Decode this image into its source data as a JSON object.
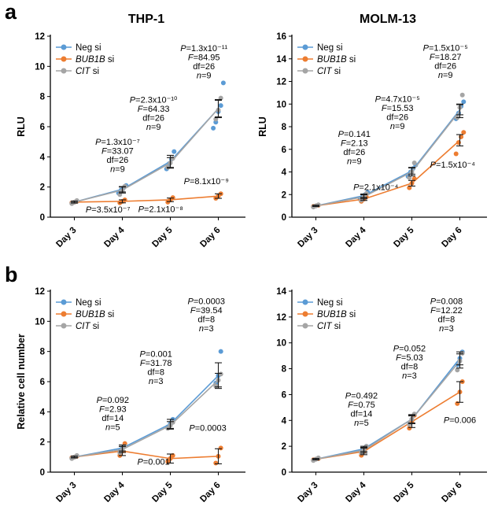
{
  "figure": {
    "panel_labels": [
      "a",
      "b"
    ]
  },
  "chart_data": [
    {
      "id": "panel-a-left",
      "type": "line",
      "title": "THP-1",
      "ylabel": "RLU",
      "ylim": [
        0,
        12
      ],
      "ytick_step": 2,
      "grid": false,
      "legend_position": "top-left",
      "categories": [
        "Day 3",
        "Day 4",
        "Day 5",
        "Day 6"
      ],
      "series": [
        {
          "label": "Neg si",
          "label_gene": "Neg",
          "gene_italic": false,
          "color": "#5B9BD5",
          "means": [
            1.0,
            1.85,
            3.7,
            7.2
          ],
          "err": [
            0.06,
            0.18,
            0.4,
            0.6
          ],
          "points": [
            [
              0.95,
              1.0,
              1.05
            ],
            [
              1.6,
              1.8,
              1.95,
              2.1
            ],
            [
              3.2,
              3.55,
              3.85,
              4.35
            ],
            [
              5.9,
              6.3,
              7.0,
              7.4,
              8.9
            ]
          ]
        },
        {
          "label": "BUB1B si",
          "label_gene": "BUB1B",
          "gene_italic": true,
          "color": "#ED7D31",
          "means": [
            1.0,
            1.05,
            1.15,
            1.4
          ],
          "err": [
            0.05,
            0.1,
            0.12,
            0.15
          ],
          "points": [
            [
              0.95,
              1.0,
              1.05
            ],
            [
              0.95,
              1.05,
              1.15
            ],
            [
              1.0,
              1.15,
              1.3
            ],
            [
              1.25,
              1.4,
              1.55
            ]
          ]
        },
        {
          "label": "CIT si",
          "label_gene": "CIT",
          "gene_italic": true,
          "color": "#A5A5A5",
          "means": [
            1.0,
            1.8,
            3.6,
            7.2
          ],
          "err": [
            0.06,
            0.2,
            0.35,
            0.55
          ],
          "points": [
            [
              0.9,
              1.0,
              1.1
            ],
            [
              1.5,
              1.75,
              2.05
            ],
            [
              3.3,
              3.6,
              3.9
            ],
            [
              6.5,
              7.1,
              7.9
            ]
          ]
        }
      ],
      "annotations": [
        {
          "x": 2.7,
          "y": 11.0,
          "lines": [
            "P=1.3x10⁻¹¹",
            "F=84.95",
            "df=26",
            "n=9"
          ]
        },
        {
          "x": 1.65,
          "y": 7.6,
          "lines": [
            "P=2.3x10⁻¹⁰",
            "F=64.33",
            "df=26",
            "n=9"
          ]
        },
        {
          "x": 0.9,
          "y": 4.8,
          "lines": [
            "P=1.3x10⁻⁷",
            "F=33.07",
            "df=26",
            "n=9"
          ]
        },
        {
          "x": 0.7,
          "y": 0.32,
          "lines": [
            "P=3.5x10⁻⁷"
          ]
        },
        {
          "x": 1.8,
          "y": 0.34,
          "lines": [
            "P=2.1x10⁻⁸"
          ]
        },
        {
          "x": 2.75,
          "y": 2.2,
          "lines": [
            "P=8.1x10⁻⁹"
          ]
        }
      ]
    },
    {
      "id": "panel-a-right",
      "type": "line",
      "title": "MOLM-13",
      "ylabel": "RLU",
      "ylim": [
        0,
        16
      ],
      "ytick_step": 2,
      "grid": false,
      "legend_position": "top-left",
      "categories": [
        "Day 3",
        "Day 4",
        "Day 5",
        "Day 6"
      ],
      "series": [
        {
          "label": "Neg si",
          "label_gene": "Neg",
          "gene_italic": false,
          "color": "#5B9BD5",
          "means": [
            1.0,
            1.9,
            4.1,
            9.5
          ],
          "err": [
            0.05,
            0.15,
            0.3,
            0.45
          ],
          "points": [
            [
              0.95,
              1.0,
              1.05
            ],
            [
              1.6,
              1.8,
              2.0,
              2.2
            ],
            [
              3.6,
              4.0,
              4.3,
              4.6
            ],
            [
              8.7,
              9.2,
              9.8,
              10.2
            ]
          ]
        },
        {
          "label": "BUB1B si",
          "label_gene": "BUB1B",
          "gene_italic": true,
          "color": "#ED7D31",
          "means": [
            1.0,
            1.6,
            3.0,
            6.8
          ],
          "err": [
            0.05,
            0.12,
            0.25,
            0.5
          ],
          "points": [
            [
              0.95,
              1.0,
              1.05
            ],
            [
              1.4,
              1.6,
              1.8
            ],
            [
              2.6,
              3.0,
              3.4
            ],
            [
              5.6,
              6.6,
              7.1,
              7.5
            ]
          ]
        },
        {
          "label": "CIT si",
          "label_gene": "CIT",
          "gene_italic": true,
          "color": "#A5A5A5",
          "means": [
            1.0,
            1.8,
            4.0,
            9.4
          ],
          "err": [
            0.05,
            0.18,
            0.35,
            0.6
          ],
          "points": [
            [
              0.9,
              1.0,
              1.1
            ],
            [
              1.5,
              1.8,
              2.1
            ],
            [
              3.5,
              4.0,
              4.8
            ],
            [
              8.8,
              9.7,
              10.8
            ]
          ]
        }
      ],
      "annotations": [
        {
          "x": 2.7,
          "y": 14.7,
          "lines": [
            "P=1.5x10⁻⁵",
            "F=18.27",
            "df=26",
            "n=9"
          ]
        },
        {
          "x": 1.7,
          "y": 10.2,
          "lines": [
            "P=4.7x10⁻⁵",
            "F=15.53",
            "df=26",
            "n=9"
          ]
        },
        {
          "x": 0.8,
          "y": 7.1,
          "lines": [
            "P=0.141",
            "F=2.13",
            "df=26",
            "n=9"
          ]
        },
        {
          "x": 1.25,
          "y": 2.4,
          "lines": [
            "P=2.1x10⁻⁴"
          ]
        },
        {
          "x": 2.85,
          "y": 4.4,
          "lines": [
            "P=1.5x10⁻⁴"
          ]
        }
      ]
    },
    {
      "id": "panel-b-left",
      "type": "line",
      "title": "",
      "ylabel": "Relative cell number",
      "ylim": [
        0,
        12
      ],
      "ytick_step": 2,
      "grid": false,
      "legend_position": "top-left",
      "categories": [
        "Day 3",
        "Day 4",
        "Day 5",
        "Day 6"
      ],
      "series": [
        {
          "label": "Neg si",
          "label_gene": "Neg",
          "gene_italic": false,
          "color": "#5B9BD5",
          "means": [
            1.0,
            1.6,
            3.2,
            6.4
          ],
          "err": [
            0.05,
            0.2,
            0.3,
            0.85
          ],
          "points": [
            [
              0.95,
              1.0,
              1.05
            ],
            [
              1.4,
              1.6,
              1.8
            ],
            [
              3.0,
              3.2,
              3.5
            ],
            [
              5.9,
              6.4,
              8.0
            ]
          ]
        },
        {
          "label": "BUB1B si",
          "label_gene": "BUB1B",
          "gene_italic": true,
          "color": "#ED7D31",
          "means": [
            1.0,
            1.4,
            0.9,
            1.05
          ],
          "err": [
            0.05,
            0.3,
            0.3,
            0.5
          ],
          "points": [
            [
              0.95,
              1.0,
              1.05
            ],
            [
              1.1,
              1.4,
              1.9
            ],
            [
              0.7,
              0.9,
              1.1
            ],
            [
              0.6,
              1.05,
              1.6
            ]
          ]
        },
        {
          "label": "CIT si",
          "label_gene": "CIT",
          "gene_italic": true,
          "color": "#A5A5A5",
          "means": [
            1.0,
            1.5,
            3.1,
            6.1
          ],
          "err": [
            0.05,
            0.2,
            0.25,
            0.45
          ],
          "points": [
            [
              0.9,
              1.0,
              1.1
            ],
            [
              1.3,
              1.5,
              1.7
            ],
            [
              2.9,
              3.1,
              3.3
            ],
            [
              5.7,
              6.1,
              6.5
            ]
          ]
        }
      ],
      "annotations": [
        {
          "x": 2.75,
          "y": 11.15,
          "lines": [
            "P=0.0003",
            "F=39.54",
            "df=8",
            "n=3"
          ]
        },
        {
          "x": 1.7,
          "y": 7.65,
          "lines": [
            "P=0.001",
            "F=31.78",
            "df=8",
            "n=3"
          ]
        },
        {
          "x": 0.8,
          "y": 4.6,
          "lines": [
            "P=0.092",
            "F=2.93",
            "df=14",
            "n=5"
          ]
        },
        {
          "x": 1.65,
          "y": 0.5,
          "lines": [
            "P=0.001"
          ]
        },
        {
          "x": 2.78,
          "y": 2.75,
          "lines": [
            "P=0.0003"
          ]
        }
      ]
    },
    {
      "id": "panel-b-right",
      "type": "line",
      "title": "",
      "ylabel": "",
      "ylim": [
        0,
        14
      ],
      "ytick_step": 2,
      "grid": false,
      "legend_position": "top-left",
      "categories": [
        "Day 3",
        "Day 4",
        "Day 5",
        "Day 6"
      ],
      "series": [
        {
          "label": "Neg si",
          "label_gene": "Neg",
          "gene_italic": false,
          "color": "#5B9BD5",
          "means": [
            1.0,
            1.8,
            4.1,
            8.8
          ],
          "err": [
            0.05,
            0.2,
            0.3,
            0.5
          ],
          "points": [
            [
              0.95,
              1.0,
              1.05
            ],
            [
              1.6,
              1.8,
              2.0
            ],
            [
              3.8,
              4.1,
              4.4
            ],
            [
              8.3,
              8.8,
              9.3
            ]
          ]
        },
        {
          "label": "BUB1B si",
          "label_gene": "BUB1B",
          "gene_italic": true,
          "color": "#ED7D31",
          "means": [
            1.0,
            1.6,
            3.9,
            6.2
          ],
          "err": [
            0.05,
            0.25,
            0.45,
            0.8
          ],
          "points": [
            [
              0.95,
              1.0,
              1.05
            ],
            [
              1.3,
              1.6,
              1.9
            ],
            [
              3.4,
              3.9,
              4.4
            ],
            [
              5.3,
              6.2,
              7.0
            ]
          ]
        },
        {
          "label": "CIT si",
          "label_gene": "CIT",
          "gene_italic": true,
          "color": "#A5A5A5",
          "means": [
            1.0,
            1.7,
            4.1,
            8.6
          ],
          "err": [
            0.05,
            0.22,
            0.35,
            0.55
          ],
          "points": [
            [
              0.9,
              1.0,
              1.1
            ],
            [
              1.5,
              1.7,
              2.0
            ],
            [
              3.7,
              4.1,
              4.5
            ],
            [
              7.9,
              8.6,
              9.2
            ]
          ]
        }
      ],
      "annotations": [
        {
          "x": 2.72,
          "y": 13.0,
          "lines": [
            "P=0.008",
            "F=12.22",
            "df=8",
            "n=3"
          ]
        },
        {
          "x": 1.95,
          "y": 9.35,
          "lines": [
            "P=0.052",
            "F=5.03",
            "df=8",
            "n=3"
          ]
        },
        {
          "x": 0.95,
          "y": 5.7,
          "lines": [
            "P=0.492",
            "F=0.75",
            "df=14",
            "n=5"
          ]
        },
        {
          "x": 3.0,
          "y": 3.8,
          "lines": [
            "P=0.006"
          ]
        }
      ]
    }
  ]
}
